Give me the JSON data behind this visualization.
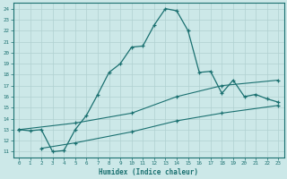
{
  "xlabel": "Humidex (Indice chaleur)",
  "bg_color": "#cce8e8",
  "grid_color": "#b0d0d0",
  "line_color": "#1a7070",
  "ylim": [
    10.5,
    24.5
  ],
  "xlim": [
    -0.5,
    23.5
  ],
  "yticks": [
    11,
    12,
    13,
    14,
    15,
    16,
    17,
    18,
    19,
    20,
    21,
    22,
    23,
    24
  ],
  "xticks": [
    0,
    1,
    2,
    3,
    4,
    5,
    6,
    7,
    8,
    9,
    10,
    11,
    12,
    13,
    14,
    15,
    16,
    17,
    18,
    19,
    20,
    21,
    22,
    23
  ],
  "curve1_x": [
    0,
    1,
    2,
    3,
    4,
    5,
    6,
    7,
    8,
    9,
    10,
    11,
    12,
    13,
    14,
    15,
    16,
    17,
    18,
    19,
    20,
    21,
    22,
    23
  ],
  "curve1_y": [
    13.0,
    12.9,
    13.0,
    11.0,
    11.1,
    13.0,
    14.3,
    16.2,
    18.2,
    19.0,
    20.5,
    20.6,
    22.5,
    24.0,
    23.8,
    22.0,
    18.2,
    18.3,
    16.3,
    17.5,
    16.0,
    16.2,
    15.8,
    15.5
  ],
  "line2_x": [
    0,
    5,
    10,
    14,
    18,
    23
  ],
  "line2_y": [
    13.0,
    13.6,
    14.5,
    16.0,
    17.0,
    17.5
  ],
  "line3_x": [
    2,
    5,
    10,
    14,
    18,
    23
  ],
  "line3_y": [
    11.3,
    11.8,
    12.8,
    13.8,
    14.5,
    15.2
  ]
}
